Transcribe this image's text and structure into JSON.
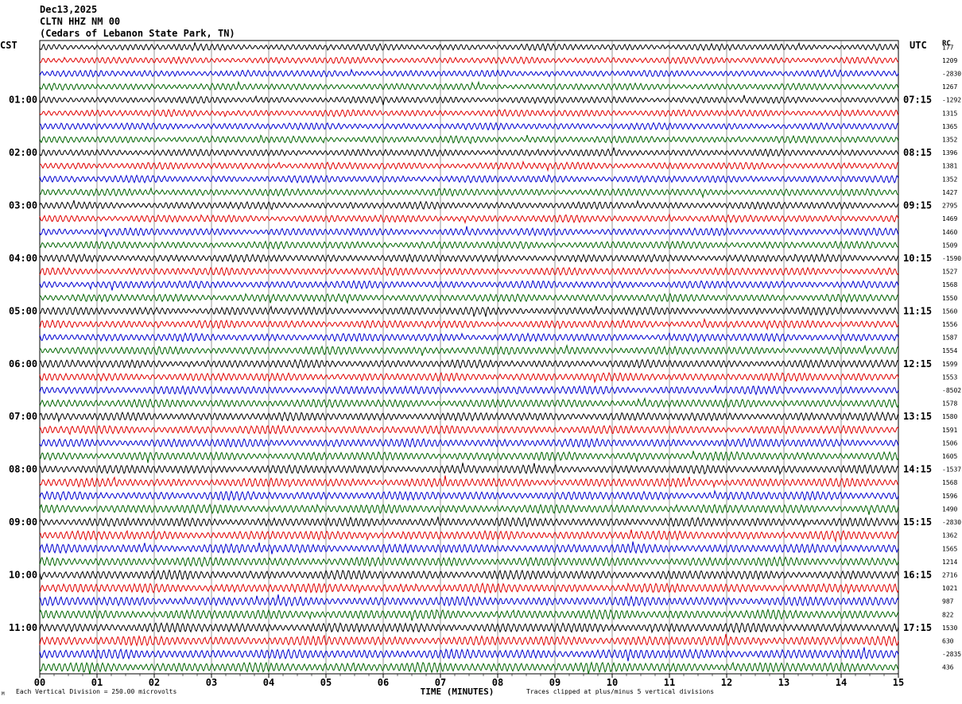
{
  "header": {
    "date": "Dec13,2025",
    "station": "CLTN HHZ NM 00",
    "location": "(Cedars of Lebanon State Park, TN)"
  },
  "left_axis_label": "CST",
  "right_axis_label": "UTC",
  "rc_label": "RC",
  "footer": {
    "scale": "Each Vertical Division =  250.00 microvolts",
    "clip": "Traces clipped at plus/minus 5 vertical divisions",
    "mark": "M"
  },
  "colors": {
    "black": "#000000",
    "red": "#e00000",
    "blue": "#0000d0",
    "green": "#006400"
  },
  "chart_data": {
    "type": "line",
    "title": "",
    "xlabel": "TIME (MINUTES)",
    "xlim": [
      0,
      15
    ],
    "x_ticks": [
      "00",
      "01",
      "02",
      "03",
      "04",
      "05",
      "06",
      "07",
      "08",
      "09",
      "10",
      "11",
      "12",
      "13",
      "14",
      "15"
    ],
    "traces_per_hour": 4,
    "trace_colors": [
      "black",
      "red",
      "blue",
      "green"
    ],
    "left_time_labels": [
      "01:00",
      "02:00",
      "03:00",
      "04:00",
      "05:00",
      "06:00",
      "07:00",
      "08:00",
      "09:00",
      "10:00",
      "11:00"
    ],
    "right_time_labels": [
      "07:15",
      "08:15",
      "09:15",
      "10:15",
      "11:15",
      "12:15",
      "13:15",
      "14:15",
      "15:15",
      "16:15",
      "17:15"
    ],
    "rc_values": [
      "177",
      "1209",
      "-2830",
      "1267",
      "-1292",
      "1315",
      "1365",
      "1352",
      "1396",
      "1381",
      "1352",
      "1427",
      "2795",
      "1469",
      "1460",
      "1509",
      "-1590",
      "1527",
      "1568",
      "1550",
      "1560",
      "1556",
      "1587",
      "1554",
      "1599",
      "1553",
      "-8502",
      "1578",
      "1580",
      "1591",
      "1506",
      "1605",
      "-1537",
      "1568",
      "1596",
      "1490",
      "-2830",
      "1362",
      "1565",
      "1214",
      "2716",
      "1021",
      "987",
      "822",
      "1530",
      "630",
      "-2835",
      "436"
    ]
  }
}
